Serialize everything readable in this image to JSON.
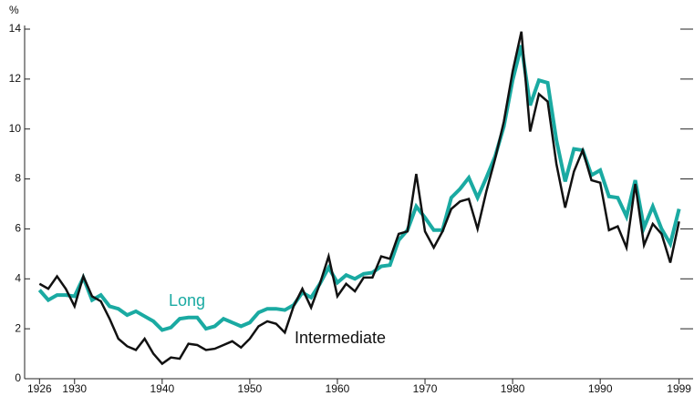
{
  "chart_data": {
    "type": "line",
    "y_label": "%",
    "x": [
      1926,
      1927,
      1928,
      1929,
      1930,
      1931,
      1932,
      1933,
      1934,
      1935,
      1936,
      1937,
      1938,
      1939,
      1940,
      1941,
      1942,
      1943,
      1944,
      1945,
      1946,
      1947,
      1948,
      1949,
      1950,
      1951,
      1952,
      1953,
      1954,
      1955,
      1956,
      1957,
      1958,
      1959,
      1960,
      1961,
      1962,
      1963,
      1964,
      1965,
      1966,
      1967,
      1968,
      1969,
      1970,
      1971,
      1972,
      1973,
      1974,
      1975,
      1976,
      1977,
      1978,
      1979,
      1980,
      1981,
      1982,
      1983,
      1984,
      1985,
      1986,
      1987,
      1988,
      1989,
      1990,
      1991,
      1992,
      1993,
      1994,
      1995,
      1996,
      1997,
      1998,
      1999
    ],
    "series": [
      {
        "name": "Long",
        "color": "#1aaaa2",
        "values": [
          3.55,
          3.15,
          3.35,
          3.35,
          3.3,
          4.05,
          3.15,
          3.35,
          2.9,
          2.8,
          2.55,
          2.7,
          2.5,
          2.3,
          1.95,
          2.05,
          2.4,
          2.45,
          2.45,
          2.0,
          2.1,
          2.4,
          2.25,
          2.1,
          2.25,
          2.65,
          2.8,
          2.8,
          2.75,
          2.95,
          3.45,
          3.25,
          3.8,
          4.45,
          3.85,
          4.15,
          4.0,
          4.2,
          4.25,
          4.5,
          4.55,
          5.55,
          5.95,
          6.9,
          6.45,
          5.95,
          5.95,
          7.25,
          7.6,
          8.05,
          7.25,
          8.05,
          8.9,
          10.1,
          11.95,
          13.35,
          10.95,
          11.95,
          11.85,
          9.55,
          7.9,
          9.2,
          9.15,
          8.15,
          8.35,
          7.3,
          7.25,
          6.5,
          7.95,
          6.05,
          6.9,
          6.0,
          5.4,
          6.8
        ]
      },
      {
        "name": "Intermediate",
        "color": "#111111",
        "values": [
          3.8,
          3.6,
          4.1,
          3.6,
          2.9,
          4.1,
          3.3,
          3.1,
          2.4,
          1.6,
          1.3,
          1.15,
          1.6,
          1.0,
          0.6,
          0.85,
          0.8,
          1.4,
          1.35,
          1.15,
          1.2,
          1.35,
          1.5,
          1.25,
          1.6,
          2.1,
          2.3,
          2.2,
          1.85,
          2.9,
          3.6,
          2.85,
          3.8,
          4.9,
          3.3,
          3.8,
          3.5,
          4.05,
          4.05,
          4.9,
          4.8,
          5.8,
          5.9,
          8.2,
          5.9,
          5.25,
          5.9,
          6.8,
          7.1,
          7.2,
          6.0,
          7.5,
          8.8,
          10.3,
          12.3,
          13.9,
          9.9,
          11.4,
          11.1,
          8.6,
          6.85,
          8.3,
          9.15,
          7.95,
          7.85,
          5.95,
          6.1,
          5.25,
          7.8,
          5.35,
          6.2,
          5.8,
          4.65,
          6.3
        ]
      }
    ],
    "xlim": [
      1924.3,
      2000.6
    ],
    "xticks": [
      1926,
      1930,
      1940,
      1950,
      1960,
      1970,
      1980,
      1990,
      1999
    ],
    "ylim": [
      0,
      14
    ],
    "yticks": [
      0,
      2,
      4,
      6,
      8,
      10,
      12,
      14
    ]
  }
}
